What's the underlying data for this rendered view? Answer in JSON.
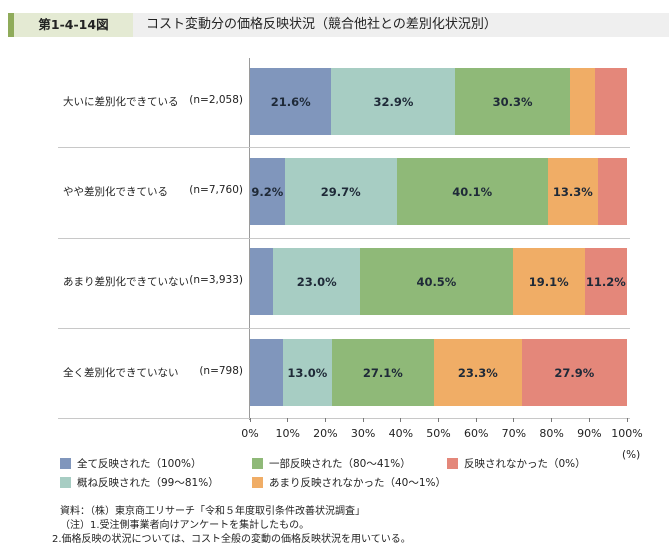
{
  "header": {
    "figure_label": "第1-4-14図",
    "title": "コスト変動分の価格反映状況（競合他社との差別化状況別）"
  },
  "colors": {
    "all_reflected": "#8096bc",
    "mostly_reflected": "#a7cdc3",
    "partly_reflected": "#8fb978",
    "barely_reflected": "#f0ad66",
    "not_reflected": "#e4877a",
    "title_stripe": "#8fab5a",
    "title_label_bg": "#e4ead3",
    "title_bar_bg": "#efefef"
  },
  "chart_data": {
    "type": "bar",
    "orientation": "horizontal",
    "stacked": true,
    "title": "コスト変動分の価格反映状況（競合他社との差別化状況別）",
    "xlabel": "(%)",
    "ylabel": "",
    "xlim": [
      0,
      100
    ],
    "x_ticks": [
      "0%",
      "10%",
      "20%",
      "30%",
      "40%",
      "50%",
      "60%",
      "70%",
      "80%",
      "90%",
      "100%"
    ],
    "categories": [
      {
        "label": "大いに差別化できている",
        "n": "(n=2,058)"
      },
      {
        "label": "やや差別化できている",
        "n": "(n=7,760)"
      },
      {
        "label": "あまり差別化できていない",
        "n": "(n=3,933)"
      },
      {
        "label": "全く差別化できていない",
        "n": "(n=798)"
      }
    ],
    "series": [
      {
        "name": "全て反映された（100%）",
        "color": "#8096bc",
        "values": [
          21.6,
          9.2,
          6.2,
          8.7
        ],
        "labels": [
          "21.6%",
          "9.2%",
          "",
          ""
        ]
      },
      {
        "name": "概ね反映された（99～81%）",
        "color": "#a7cdc3",
        "values": [
          32.9,
          29.7,
          23.0,
          13.0
        ],
        "labels": [
          "32.9%",
          "29.7%",
          "23.0%",
          "13.0%"
        ]
      },
      {
        "name": "一部反映された（80～41%）",
        "color": "#8fb978",
        "values": [
          30.3,
          40.1,
          40.5,
          27.1
        ],
        "labels": [
          "30.3%",
          "40.1%",
          "40.5%",
          "27.1%"
        ]
      },
      {
        "name": "あまり反映されなかった（40～1%）",
        "color": "#f0ad66",
        "values": [
          6.6,
          13.3,
          19.1,
          23.3
        ],
        "labels": [
          "",
          "13.3%",
          "19.1%",
          "23.3%"
        ]
      },
      {
        "name": "反映されなかった（0%）",
        "color": "#e4877a",
        "values": [
          8.6,
          7.7,
          11.2,
          27.9
        ],
        "labels": [
          "",
          "",
          "11.2%",
          "27.9%"
        ]
      }
    ],
    "grid": false,
    "legend_position": "bottom"
  },
  "legend": [
    {
      "label": "全て反映された（100%）",
      "color": "#8096bc"
    },
    {
      "label": "一部反映された（80～41%）",
      "color": "#8fb978"
    },
    {
      "label": "反映されなかった（0%）",
      "color": "#e4877a"
    },
    {
      "label": "概ね反映された（99～81%）",
      "color": "#a7cdc3"
    },
    {
      "label": "あまり反映されなかった（40～1%）",
      "color": "#f0ad66"
    }
  ],
  "notes": {
    "source": "資料：（株）東京商工リサーチ「令和５年度取引条件改善状況調査」",
    "note1": "（注）1.受注側事業者向けアンケートを集計したもの。",
    "note2": "2.価格反映の状況については、コスト全般の変動の価格反映状況を用いている。"
  }
}
